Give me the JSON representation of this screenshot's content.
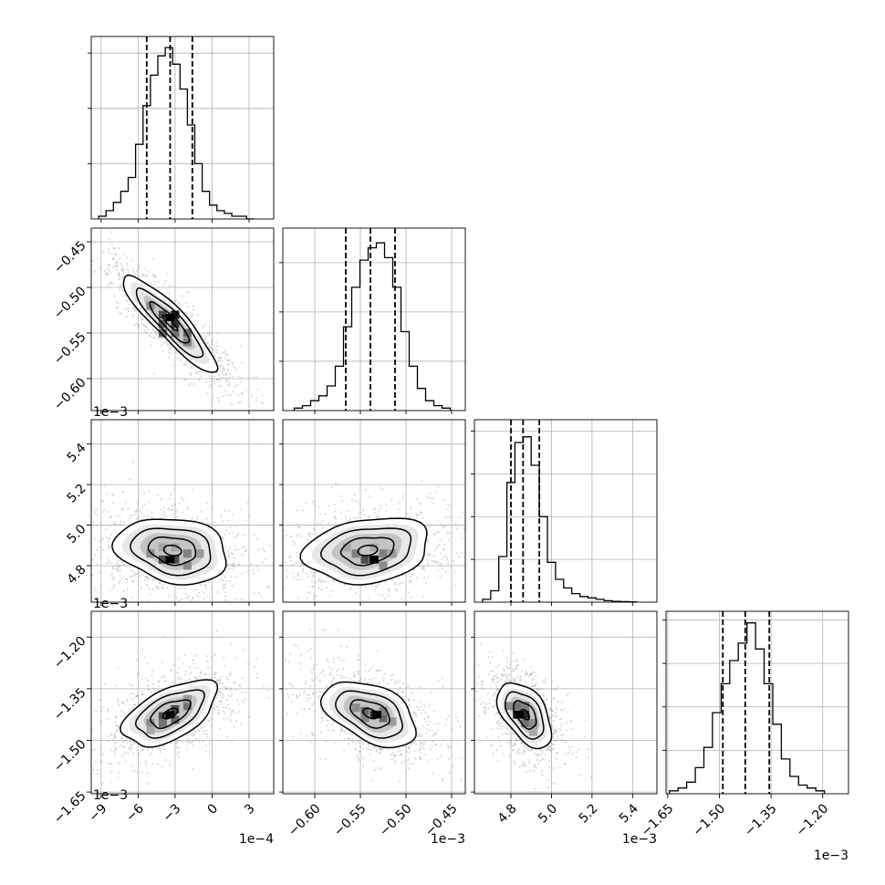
{
  "chart_data": {
    "type": "corner",
    "grid": true,
    "parameters": [
      {
        "range": [
          -9.8,
          5.0
        ],
        "ticks": [
          -9,
          -6,
          -3,
          0,
          3
        ],
        "tick_labels": [
          "−9",
          "−6",
          "−3",
          "0",
          "3"
        ],
        "offset_label": "1e−4",
        "quantiles": [
          -5.3,
          -3.4,
          -1.6
        ],
        "hist_bins": [
          -9.2,
          -8.6,
          -8.0,
          -7.4,
          -6.8,
          -6.2,
          -5.6,
          -5.0,
          -4.4,
          -3.8,
          -3.2,
          -2.6,
          -2.0,
          -1.4,
          -0.8,
          -0.2,
          0.4,
          1.0,
          1.6,
          2.2,
          2.8,
          3.4
        ],
        "hist_counts": [
          1,
          3,
          6,
          10,
          15,
          27,
          41,
          52,
          59,
          62,
          56,
          47,
          34,
          20,
          10,
          5,
          3,
          2,
          1,
          1,
          0
        ],
        "hist_ymax": 66,
        "hist_ticks": [
          20,
          40,
          60
        ]
      },
      {
        "range": [
          -0.635,
          -0.435
        ],
        "ticks": [
          -0.6,
          -0.55,
          -0.5,
          -0.45
        ],
        "tick_labels": [
          "−0.60",
          "−0.55",
          "−0.50",
          "−0.45"
        ],
        "offset_label": "1e−3",
        "quantiles": [
          -0.566,
          -0.539,
          -0.512
        ],
        "hist_bins": [
          -0.6225,
          -0.6135,
          -0.6045,
          -0.5955,
          -0.5865,
          -0.5775,
          -0.5685,
          -0.5595,
          -0.5505,
          -0.5415,
          -0.5325,
          -0.5235,
          -0.5145,
          -0.5055,
          -0.4965,
          -0.4875,
          -0.4785,
          -0.4695,
          -0.4605,
          -0.4515
        ],
        "hist_counts": [
          1,
          2,
          4,
          6,
          10,
          18,
          34,
          50,
          61,
          66,
          68,
          62,
          50,
          32,
          18,
          9,
          4,
          2,
          1
        ],
        "hist_ymax": 74,
        "hist_ticks": [
          20,
          40,
          60
        ]
      },
      {
        "range": [
          4.62,
          5.52
        ],
        "ticks": [
          4.8,
          5.0,
          5.2,
          5.4
        ],
        "tick_labels": [
          "4.8",
          "5.0",
          "5.2",
          "5.4"
        ],
        "offset_label": "1e−3",
        "quantiles": [
          4.8,
          4.86,
          4.94
        ],
        "hist_bins": [
          4.66,
          4.7,
          4.74,
          4.78,
          4.82,
          4.86,
          4.9,
          4.94,
          4.98,
          5.02,
          5.06,
          5.1,
          5.14,
          5.18,
          5.22,
          5.26,
          5.3,
          5.34,
          5.38,
          5.42
        ],
        "hist_counts": [
          1,
          4,
          16,
          42,
          56,
          58,
          48,
          30,
          14,
          8,
          5,
          3,
          2,
          1.5,
          1,
          0.5,
          0.3,
          0.2,
          0.1
        ],
        "hist_ymax": 64,
        "hist_ticks": [
          15,
          30,
          45,
          60
        ]
      },
      {
        "range": [
          -1.655,
          -1.125
        ],
        "ticks": [
          -1.65,
          -1.5,
          -1.35,
          -1.2
        ],
        "tick_labels": [
          "−1.65",
          "−1.50",
          "−1.35",
          "−1.20"
        ],
        "offset_label": "1e−3",
        "quantiles": [
          -1.49,
          -1.425,
          -1.355
        ],
        "hist_bins": [
          -1.645,
          -1.62,
          -1.595,
          -1.57,
          -1.545,
          -1.52,
          -1.495,
          -1.47,
          -1.445,
          -1.42,
          -1.395,
          -1.37,
          -1.345,
          -1.32,
          -1.295,
          -1.27,
          -1.245,
          -1.22,
          -1.195
        ],
        "hist_counts": [
          1,
          2,
          4,
          9,
          16,
          28,
          38,
          46,
          52,
          59,
          50,
          38,
          24,
          12,
          6,
          3,
          2,
          1
        ],
        "hist_ymax": 63,
        "hist_ticks": [
          15,
          30,
          45,
          60
        ]
      }
    ],
    "pairs": [
      {
        "row": 1,
        "col": 0,
        "center": [
          -3.4,
          -0.539
        ],
        "sd": [
          2.0,
          0.028
        ],
        "rho": -0.9,
        "peak": [
          -3.4,
          -0.533
        ],
        "grid_cells": [
          [
            -4,
            -0.55,
            0.6
          ],
          [
            -3,
            -0.54,
            0.8
          ],
          [
            -3,
            -0.53,
            0.9
          ],
          [
            -4,
            -0.53,
            0.7
          ],
          [
            -2,
            -0.55,
            0.6
          ],
          [
            -2,
            -0.56,
            0.5
          ],
          [
            -5,
            -0.52,
            0.45
          ],
          [
            -3,
            -0.55,
            0.55
          ],
          [
            -4,
            -0.54,
            0.65
          ]
        ]
      },
      {
        "row": 2,
        "col": 0,
        "center": [
          -3.2,
          4.875
        ],
        "sd": [
          2.4,
          0.085
        ],
        "rho": -0.2,
        "peak": [
          -3.4,
          4.83
        ],
        "grid_cells": [
          [
            -4,
            4.83,
            0.7
          ],
          [
            -3,
            4.83,
            0.7
          ],
          [
            -2,
            4.86,
            0.5
          ],
          [
            -5,
            4.86,
            0.45
          ],
          [
            -4,
            4.89,
            0.35
          ],
          [
            -3,
            4.89,
            0.35
          ],
          [
            -1,
            4.86,
            0.4
          ],
          [
            -2,
            4.8,
            0.45
          ]
        ]
      },
      {
        "row": 2,
        "col": 1,
        "center": [
          -0.542,
          4.875
        ],
        "sd": [
          0.036,
          0.085
        ],
        "rho": 0.2,
        "peak": [
          -0.535,
          4.83
        ],
        "grid_cells": [
          [
            -0.545,
            4.83,
            0.7
          ],
          [
            -0.535,
            4.83,
            0.7
          ],
          [
            -0.525,
            4.86,
            0.5
          ],
          [
            -0.555,
            4.86,
            0.5
          ],
          [
            -0.515,
            4.86,
            0.4
          ],
          [
            -0.535,
            4.89,
            0.35
          ],
          [
            -0.565,
            4.89,
            0.35
          ],
          [
            -0.525,
            4.8,
            0.45
          ]
        ]
      },
      {
        "row": 3,
        "col": 0,
        "center": [
          -3.4,
          -1.422
        ],
        "sd": [
          2.0,
          0.05
        ],
        "rho": 0.55,
        "peak": [
          -3.4,
          -1.425
        ],
        "grid_cells": [
          [
            -4,
            -1.43,
            0.7
          ],
          [
            -3,
            -1.41,
            0.7
          ],
          [
            -2,
            -1.4,
            0.55
          ],
          [
            -4,
            -1.45,
            0.55
          ],
          [
            -5,
            -1.45,
            0.45
          ],
          [
            -3,
            -1.44,
            0.6
          ],
          [
            -2,
            -1.38,
            0.4
          ],
          [
            -5,
            -1.47,
            0.35
          ]
        ]
      },
      {
        "row": 3,
        "col": 1,
        "center": [
          -0.539,
          -1.422
        ],
        "sd": [
          0.027,
          0.05
        ],
        "rho": -0.45,
        "peak": [
          -0.532,
          -1.425
        ],
        "grid_cells": [
          [
            -0.535,
            -1.425,
            0.8
          ],
          [
            -0.545,
            -1.415,
            0.6
          ],
          [
            -0.525,
            -1.435,
            0.6
          ],
          [
            -0.555,
            -1.405,
            0.45
          ],
          [
            -0.525,
            -1.415,
            0.5
          ],
          [
            -0.545,
            -1.435,
            0.5
          ],
          [
            -0.515,
            -1.445,
            0.4
          ]
        ]
      },
      {
        "row": 3,
        "col": 2,
        "center": [
          4.87,
          -1.425
        ],
        "sd": [
          0.07,
          0.05
        ],
        "rho": -0.5,
        "peak": [
          4.84,
          -1.425
        ],
        "grid_cells": [
          [
            4.83,
            -1.425,
            0.85
          ],
          [
            4.87,
            -1.425,
            0.85
          ],
          [
            4.83,
            -1.4,
            0.55
          ],
          [
            4.87,
            -1.45,
            0.55
          ],
          [
            4.91,
            -1.45,
            0.45
          ],
          [
            4.79,
            -1.4,
            0.45
          ],
          [
            4.87,
            -1.4,
            0.5
          ],
          [
            4.91,
            -1.475,
            0.35
          ]
        ]
      }
    ]
  }
}
